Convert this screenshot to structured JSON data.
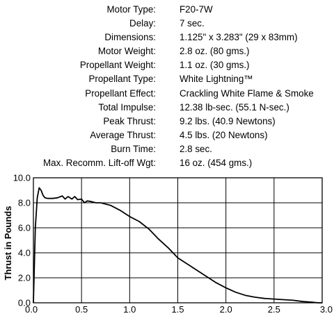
{
  "specs": [
    {
      "label": "Motor Type:",
      "value": "F20-7W"
    },
    {
      "label": "Delay:",
      "value": "7 sec."
    },
    {
      "label": "Dimensions:",
      "value": "1.125\" x 3.283\" (29 x 83mm)"
    },
    {
      "label": "Motor Weight:",
      "value": "2.8 oz. (80 gms.)"
    },
    {
      "label": "Propellant Weight:",
      "value": "1.1 oz. (30 gms.)"
    },
    {
      "label": "Propellant Type:",
      "value": "White Lightning™"
    },
    {
      "label": "Propellant Effect:",
      "value": "Crackling White Flame & Smoke"
    },
    {
      "label": "Total  Impulse:",
      "value": "12.38 lb-sec. (55.1 N-sec.)"
    },
    {
      "label": "Peak Thrust:",
      "value": "9.2 lbs. (40.9 Newtons)"
    },
    {
      "label": "Average Thrust:",
      "value": "4.5 lbs. (20 Newtons)"
    },
    {
      "label": "Burn Time:",
      "value": "2.8 sec."
    },
    {
      "label": "Max. Recomm. Lift-off Wgt:",
      "value": "16 oz. (454 gms.)"
    }
  ],
  "chart_data": {
    "type": "line",
    "title": "",
    "xlabel": "",
    "ylabel": "Thrust in Pounds",
    "xlim": [
      0.0,
      3.0
    ],
    "ylim": [
      0.0,
      10.0
    ],
    "x_ticks": [
      0.0,
      0.5,
      1.0,
      1.5,
      2.0,
      2.5,
      3.0
    ],
    "y_ticks": [
      0.0,
      2.0,
      4.0,
      6.0,
      8.0,
      10.0
    ],
    "x_tick_labels": [
      "0.0",
      "0.5",
      "1.0",
      "1.5",
      "2.0",
      "2.5",
      "3.0"
    ],
    "y_tick_labels": [
      "0.0",
      "2.0",
      "4.0",
      "6.0",
      "8.0",
      "10.0"
    ],
    "grid": true,
    "line_color": "#000000",
    "series": [
      {
        "x": [
          0.0,
          0.02,
          0.04,
          0.06,
          0.08,
          0.1,
          0.12,
          0.15,
          0.2,
          0.25,
          0.3,
          0.33,
          0.36,
          0.4,
          0.43,
          0.46,
          0.5,
          0.53,
          0.56,
          0.6,
          0.65,
          0.7,
          0.8,
          0.9,
          1.0,
          1.1,
          1.2,
          1.3,
          1.4,
          1.5,
          1.6,
          1.7,
          1.8,
          1.9,
          2.0,
          2.1,
          2.2,
          2.3,
          2.4,
          2.5,
          2.6,
          2.7,
          2.8,
          2.9,
          2.96,
          3.0
        ],
        "y": [
          0.0,
          6.0,
          8.4,
          9.2,
          9.0,
          8.6,
          8.4,
          8.35,
          8.35,
          8.4,
          8.55,
          8.3,
          8.5,
          8.3,
          8.5,
          8.25,
          8.3,
          8.0,
          8.15,
          8.1,
          8.0,
          8.0,
          7.8,
          7.4,
          6.9,
          6.5,
          5.9,
          5.1,
          4.4,
          3.6,
          3.1,
          2.6,
          2.1,
          1.6,
          1.2,
          0.85,
          0.6,
          0.45,
          0.35,
          0.3,
          0.25,
          0.2,
          0.1,
          0.05,
          0.0,
          0.0
        ]
      }
    ]
  }
}
